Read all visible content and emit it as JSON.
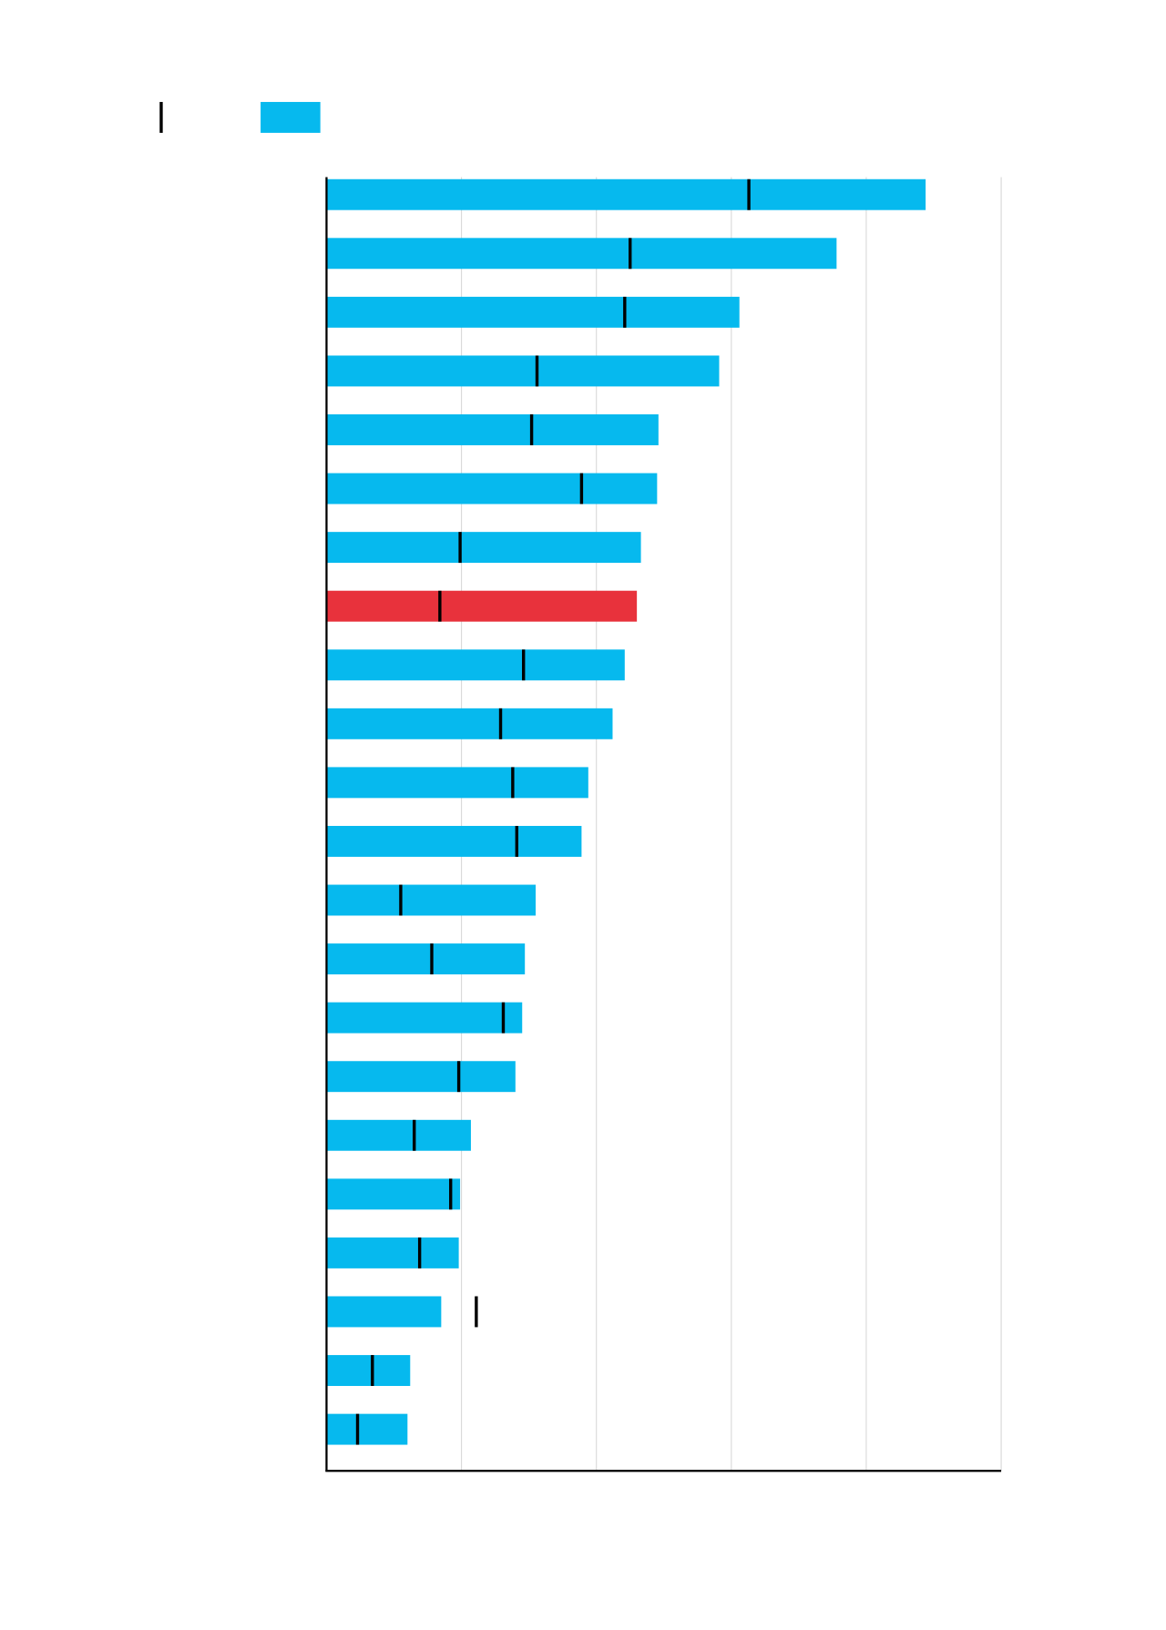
{
  "chart_data": {
    "type": "bar",
    "orientation": "horizontal",
    "xlim": [
      0,
      5
    ],
    "grid": true,
    "legend": "top-left",
    "legend_items": [
      {
        "kind": "marker",
        "color": "#000000"
      },
      {
        "kind": "bar",
        "color": "#06b9ee"
      }
    ],
    "colors": {
      "bar": "#06b9ee",
      "highlight": "#e8323c",
      "marker": "#000000",
      "grid": "#d9d9d9",
      "axis": "#000000"
    },
    "highlight_index": 7,
    "values": [
      4.44,
      3.78,
      3.06,
      2.91,
      2.46,
      2.45,
      2.33,
      2.3,
      2.21,
      2.12,
      1.94,
      1.89,
      1.55,
      1.47,
      1.45,
      1.4,
      1.07,
      0.99,
      0.98,
      0.85,
      0.62,
      0.6
    ],
    "markers": [
      3.13,
      2.25,
      2.21,
      1.56,
      1.52,
      1.89,
      0.99,
      0.84,
      1.46,
      1.29,
      1.38,
      1.41,
      0.55,
      0.78,
      1.31,
      0.98,
      0.65,
      0.92,
      0.69,
      1.11,
      0.34,
      0.23
    ]
  }
}
